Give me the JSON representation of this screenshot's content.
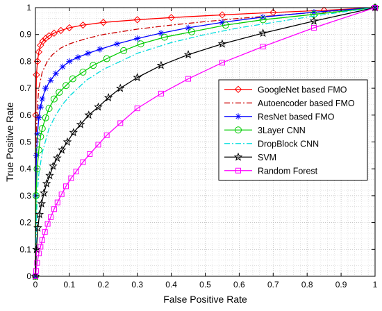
{
  "chart_data": {
    "type": "line",
    "title": "",
    "xlabel": "False Positive Rate",
    "ylabel": "True Positive Rate",
    "xlim": [
      0,
      1
    ],
    "ylim": [
      0,
      1
    ],
    "xticks": [
      "0",
      "0.1",
      "0.2",
      "0.3",
      "0.4",
      "0.5",
      "0.6",
      "0.7",
      "0.8",
      "0.9",
      "1"
    ],
    "yticks": [
      "0",
      "0.1",
      "0.2",
      "0.3",
      "0.4",
      "0.5",
      "0.6",
      "0.7",
      "0.8",
      "0.9",
      "1"
    ],
    "grid": "dotted major and minor",
    "legend_position": "center-right",
    "series": [
      {
        "name": "GoogleNet based FMO",
        "color": "#ff0000",
        "line": "solid",
        "marker": "diamond",
        "x": [
          0,
          0.001,
          0.003,
          0.006,
          0.01,
          0.015,
          0.022,
          0.03,
          0.04,
          0.055,
          0.075,
          0.1,
          0.14,
          0.2,
          0.3,
          0.4,
          0.55,
          0.7,
          0.85,
          1
        ],
        "y": [
          0,
          0.6,
          0.75,
          0.8,
          0.835,
          0.86,
          0.875,
          0.885,
          0.895,
          0.905,
          0.915,
          0.925,
          0.935,
          0.945,
          0.955,
          0.963,
          0.973,
          0.982,
          0.99,
          1
        ]
      },
      {
        "name": "Autoencoder based FMO",
        "color": "#cc0000",
        "line": "dashdot",
        "marker": "none",
        "x": [
          0,
          0.002,
          0.005,
          0.01,
          0.02,
          0.035,
          0.05,
          0.075,
          0.1,
          0.15,
          0.2,
          0.3,
          0.4,
          0.5,
          0.6,
          0.7,
          0.8,
          0.9,
          1
        ],
        "y": [
          0,
          0.5,
          0.62,
          0.7,
          0.76,
          0.8,
          0.825,
          0.85,
          0.865,
          0.885,
          0.9,
          0.92,
          0.935,
          0.948,
          0.96,
          0.97,
          0.98,
          0.99,
          1
        ]
      },
      {
        "name": "ResNet based FMO",
        "color": "#0000ff",
        "line": "solid",
        "marker": "asterisk",
        "x": [
          0,
          0.001,
          0.003,
          0.006,
          0.01,
          0.015,
          0.02,
          0.03,
          0.045,
          0.06,
          0.08,
          0.1,
          0.125,
          0.155,
          0.19,
          0.24,
          0.3,
          0.37,
          0.45,
          0.55,
          0.67,
          0.82,
          1
        ],
        "y": [
          0,
          0.3,
          0.45,
          0.53,
          0.59,
          0.63,
          0.66,
          0.7,
          0.73,
          0.755,
          0.78,
          0.8,
          0.815,
          0.83,
          0.845,
          0.865,
          0.885,
          0.905,
          0.925,
          0.945,
          0.965,
          0.983,
          1
        ]
      },
      {
        "name": "3Layer CNN",
        "color": "#00cc00",
        "line": "solid",
        "marker": "circle",
        "x": [
          0,
          0.002,
          0.005,
          0.01,
          0.015,
          0.02,
          0.03,
          0.04,
          0.055,
          0.07,
          0.09,
          0.11,
          0.14,
          0.17,
          0.21,
          0.26,
          0.31,
          0.38,
          0.46,
          0.56,
          0.67,
          0.82,
          1
        ],
        "y": [
          0,
          0.3,
          0.4,
          0.47,
          0.52,
          0.55,
          0.59,
          0.625,
          0.66,
          0.685,
          0.71,
          0.735,
          0.76,
          0.785,
          0.81,
          0.84,
          0.865,
          0.89,
          0.91,
          0.935,
          0.955,
          0.975,
          1
        ]
      },
      {
        "name": "DropBlock CNN",
        "color": "#00dddd",
        "line": "dashdot",
        "marker": "none",
        "x": [
          0,
          0.005,
          0.01,
          0.02,
          0.04,
          0.06,
          0.08,
          0.1,
          0.15,
          0.2,
          0.3,
          0.4,
          0.5,
          0.6,
          0.7,
          0.8,
          0.9,
          1
        ],
        "y": [
          0,
          0.3,
          0.38,
          0.46,
          0.55,
          0.6,
          0.64,
          0.67,
          0.73,
          0.77,
          0.83,
          0.87,
          0.9,
          0.925,
          0.945,
          0.965,
          0.983,
          1
        ]
      },
      {
        "name": "SVM",
        "color": "#000000",
        "line": "solid",
        "marker": "pentagram",
        "x": [
          0,
          0.003,
          0.007,
          0.012,
          0.018,
          0.025,
          0.033,
          0.042,
          0.052,
          0.064,
          0.078,
          0.094,
          0.112,
          0.133,
          0.157,
          0.185,
          0.215,
          0.25,
          0.3,
          0.37,
          0.45,
          0.55,
          0.67,
          0.82,
          1
        ],
        "y": [
          0,
          0.1,
          0.18,
          0.23,
          0.27,
          0.31,
          0.345,
          0.375,
          0.41,
          0.44,
          0.47,
          0.5,
          0.535,
          0.565,
          0.6,
          0.63,
          0.665,
          0.7,
          0.74,
          0.785,
          0.825,
          0.865,
          0.905,
          0.95,
          1
        ]
      },
      {
        "name": "Random Forest",
        "color": "#ff00ff",
        "line": "solid",
        "marker": "square",
        "x": [
          0,
          0.002,
          0.005,
          0.01,
          0.015,
          0.02,
          0.028,
          0.036,
          0.045,
          0.055,
          0.065,
          0.077,
          0.09,
          0.105,
          0.12,
          0.14,
          0.16,
          0.185,
          0.21,
          0.25,
          0.3,
          0.37,
          0.45,
          0.55,
          0.67,
          0.82,
          1
        ],
        "y": [
          0,
          0.02,
          0.05,
          0.085,
          0.11,
          0.135,
          0.165,
          0.195,
          0.22,
          0.25,
          0.275,
          0.305,
          0.335,
          0.365,
          0.39,
          0.425,
          0.455,
          0.49,
          0.525,
          0.57,
          0.625,
          0.68,
          0.735,
          0.795,
          0.855,
          0.925,
          1
        ]
      }
    ]
  }
}
